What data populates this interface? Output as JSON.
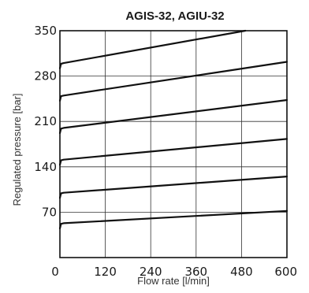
{
  "chart_data": {
    "type": "line",
    "title": "AGIS-32, AGIU-32",
    "xlabel": "Flow rate [l/min]",
    "ylabel": "Regulated pressure [bar]",
    "xlim": [
      0,
      600
    ],
    "ylim": [
      0,
      350
    ],
    "xticks": [
      0,
      120,
      240,
      360,
      480,
      600
    ],
    "yticks": [
      70,
      140,
      210,
      280,
      350
    ],
    "xtick_labels": [
      "0",
      "120",
      "240",
      "360",
      "480",
      "600"
    ],
    "ytick_labels": [
      "70",
      "140",
      "210",
      "280",
      "350"
    ],
    "grid": true,
    "series": [
      {
        "x": [
          0,
          3,
          10,
          600
        ],
        "y": [
          45,
          52,
          53,
          72
        ]
      },
      {
        "x": [
          0,
          3,
          10,
          600
        ],
        "y": [
          92,
          99,
          100,
          125
        ]
      },
      {
        "x": [
          0,
          3,
          10,
          600
        ],
        "y": [
          143,
          150,
          151,
          183
        ]
      },
      {
        "x": [
          0,
          3,
          10,
          600
        ],
        "y": [
          192,
          199,
          200,
          243
        ]
      },
      {
        "x": [
          0,
          3,
          10,
          600
        ],
        "y": [
          242,
          249,
          250,
          302
        ]
      },
      {
        "x": [
          0,
          3,
          10,
          490
        ],
        "y": [
          292,
          299,
          300,
          350
        ]
      }
    ]
  }
}
